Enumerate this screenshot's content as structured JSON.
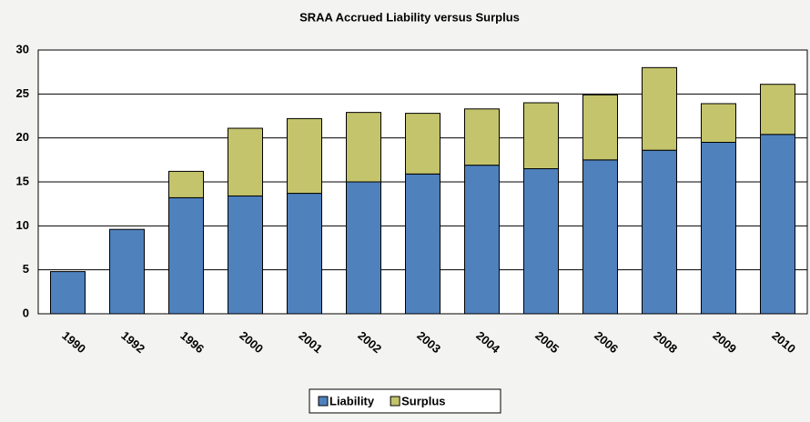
{
  "chart_data": {
    "type": "stacked_bar",
    "title": "SRAA Accrued Liability versus Surplus",
    "categories": [
      "1990",
      "1992",
      "1996",
      "2000",
      "2001",
      "2002",
      "2003",
      "2004",
      "2005",
      "2006",
      "2008",
      "2009",
      "2010"
    ],
    "series": [
      {
        "name": "Liability",
        "color": "#4f81bd",
        "values": [
          4.8,
          9.6,
          13.2,
          13.4,
          13.7,
          15.0,
          15.9,
          16.9,
          16.5,
          17.5,
          18.6,
          19.5,
          20.4
        ]
      },
      {
        "name": "Surplus",
        "color": "#c4c46c",
        "values": [
          0,
          0,
          3.0,
          7.7,
          8.5,
          7.9,
          6.9,
          6.4,
          7.5,
          7.4,
          9.4,
          4.4,
          5.7
        ]
      }
    ],
    "ylim": [
      0,
      30
    ],
    "yticks": [
      0,
      5,
      10,
      15,
      20,
      25,
      30
    ],
    "grid": true,
    "legend": "bottom"
  }
}
